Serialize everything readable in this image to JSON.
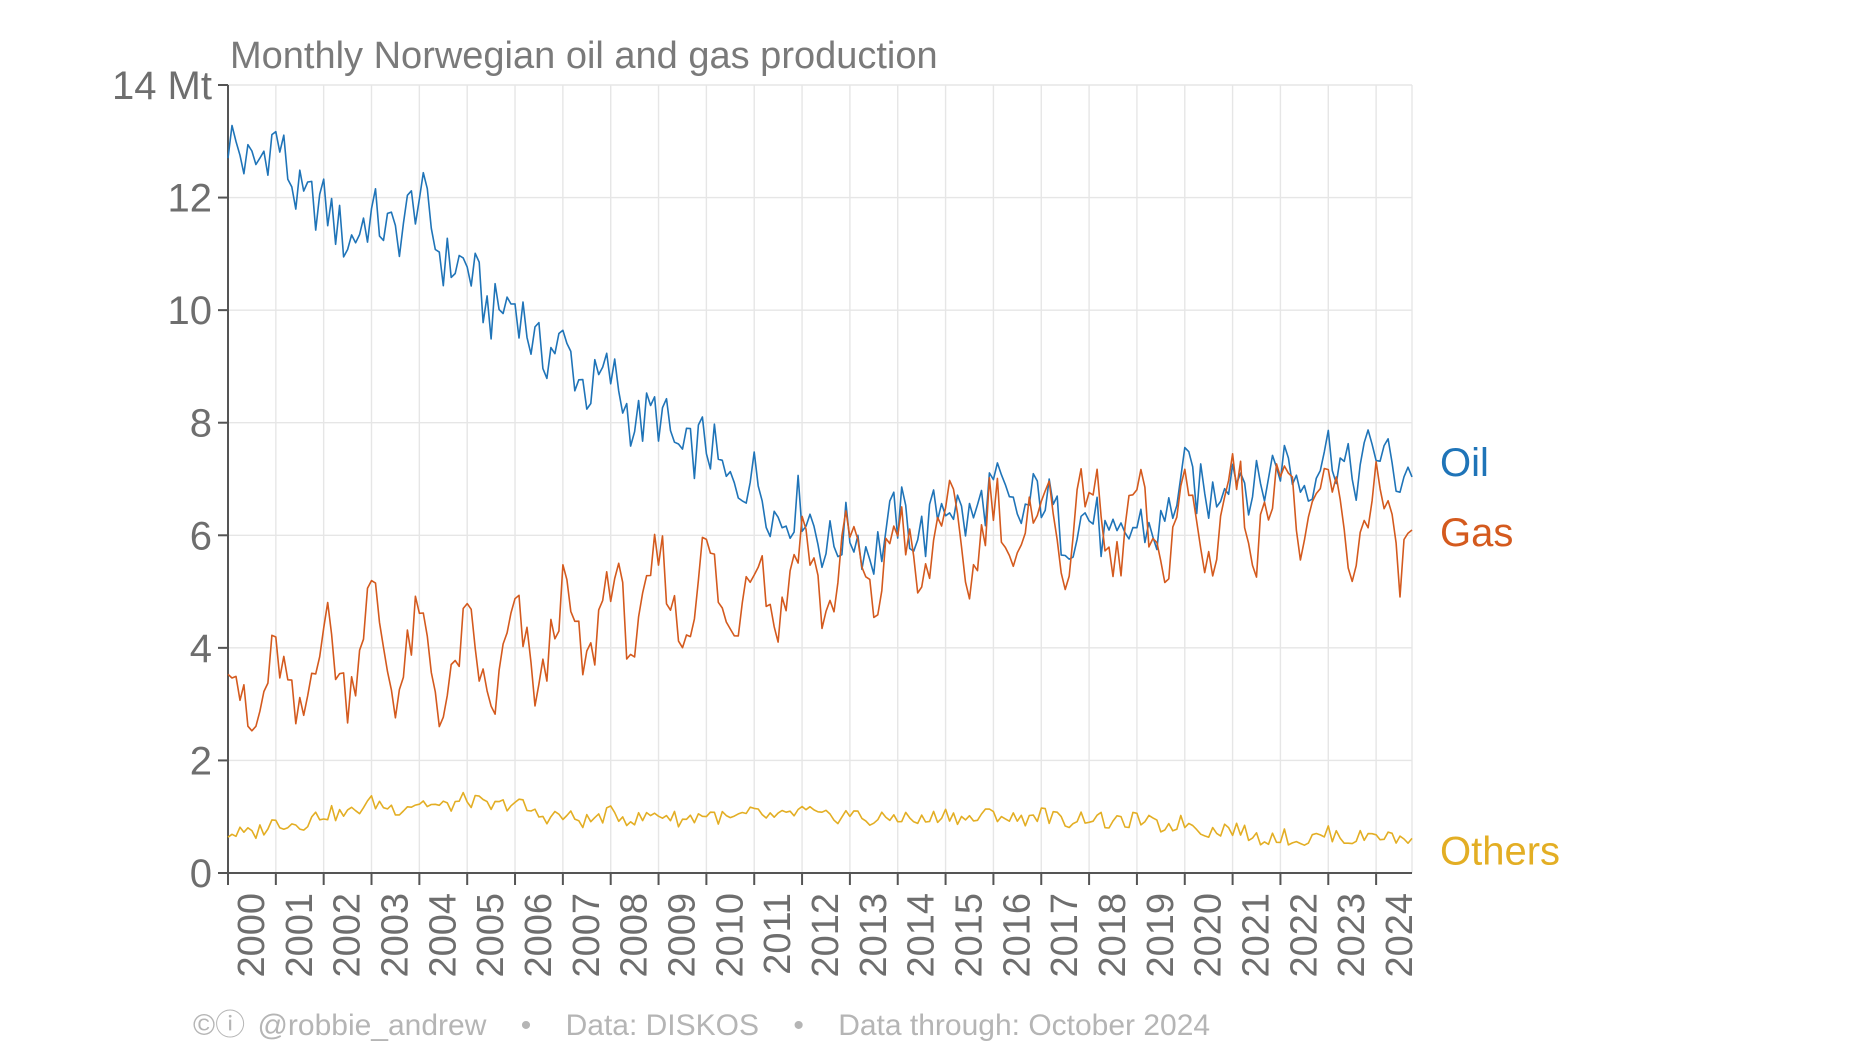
{
  "chart_data": {
    "type": "line",
    "title": "Monthly Norwegian oil and gas production",
    "unit": "Mt",
    "xlabel": "",
    "ylabel": "",
    "xlim": [
      "2000-01",
      "2024-10"
    ],
    "ylim": [
      0,
      14
    ],
    "y_ticks": [
      0,
      2,
      4,
      6,
      8,
      10,
      12,
      14
    ],
    "y_tick_labels": [
      "0",
      "2",
      "4",
      "6",
      "8",
      "10",
      "12",
      "14 Mt"
    ],
    "x_tick_labels": [
      "2000",
      "2001",
      "2002",
      "2003",
      "2004",
      "2005",
      "2006",
      "2007",
      "2008",
      "2009",
      "2010",
      "2011",
      "2012",
      "2013",
      "2014",
      "2015",
      "2016",
      "2017",
      "2018",
      "2019",
      "2020",
      "2021",
      "2022",
      "2023",
      "2024"
    ],
    "grid": true,
    "legend": "direct labels at right end of each series",
    "x_kind": "monthly, annual approximate values by year (Jan 2000 – Oct 2024)",
    "x": [
      2000,
      2001,
      2002,
      2003,
      2004,
      2005,
      2006,
      2007,
      2008,
      2009,
      2010,
      2011,
      2012,
      2013,
      2014,
      2015,
      2016,
      2017,
      2018,
      2019,
      2020,
      2021,
      2022,
      2023,
      2024
    ],
    "series": [
      {
        "name": "Oil",
        "color": "#1f74b8",
        "values": [
          12.8,
          12.8,
          11.6,
          11.4,
          11.8,
          10.5,
          9.9,
          9.1,
          8.6,
          7.9,
          7.4,
          6.8,
          6.3,
          5.8,
          6.1,
          6.4,
          6.6,
          6.5,
          6.1,
          5.9,
          6.8,
          7.0,
          7.1,
          7.3,
          7.3
        ]
      },
      {
        "name": "Gas",
        "color": "#d45a1e",
        "values": [
          3.3,
          3.1,
          3.7,
          4.2,
          3.7,
          3.6,
          3.8,
          4.2,
          4.6,
          4.9,
          5.0,
          5.0,
          5.4,
          5.3,
          5.6,
          5.9,
          6.0,
          6.2,
          6.3,
          6.0,
          6.1,
          6.4,
          6.7,
          6.3,
          6.2
        ]
      },
      {
        "name": "Others",
        "color": "#e3ae24",
        "values": [
          0.65,
          0.85,
          1.0,
          1.2,
          1.2,
          1.25,
          1.2,
          0.95,
          1.0,
          1.0,
          1.0,
          1.0,
          1.05,
          1.0,
          0.95,
          1.0,
          1.0,
          1.0,
          0.95,
          0.9,
          0.85,
          0.75,
          0.6,
          0.65,
          0.65
        ]
      }
    ]
  },
  "footer": {
    "credit_icons": "©ⓘ",
    "author": "@robbie_andrew",
    "separator": "•",
    "source": "Data: DISKOS",
    "through": "Data through: October 2024"
  }
}
